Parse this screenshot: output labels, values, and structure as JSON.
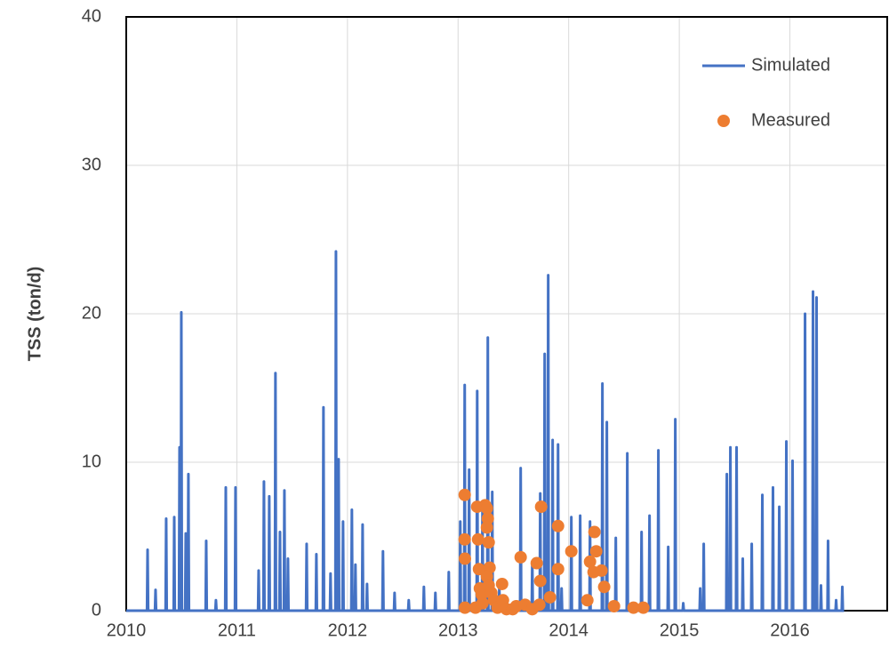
{
  "chart_data": {
    "type": "line",
    "y_label": "TSS (ton/d)",
    "xlim": [
      2010,
      2016.88
    ],
    "xticks": [
      2010,
      2011,
      2012,
      2013,
      2014,
      2015,
      2016
    ],
    "ylim": [
      0,
      40
    ],
    "yticks": [
      0,
      10,
      20,
      30,
      40
    ],
    "grid": true,
    "legend": "upper right",
    "series": [
      {
        "name": "Simulated",
        "type": "line",
        "color": "#4472c4",
        "x": [
          2010.0,
          2010.188,
          2010.193,
          2010.198,
          2010.26,
          2010.265,
          2010.27,
          2010.356,
          2010.361,
          2010.366,
          2010.429,
          2010.434,
          2010.439,
          2010.477,
          2010.482,
          2010.487,
          2010.493,
          2010.498,
          2010.503,
          2010.533,
          2010.538,
          2010.543,
          2010.557,
          2010.562,
          2010.567,
          2010.718,
          2010.723,
          2010.728,
          2010.806,
          2010.811,
          2010.816,
          2010.895,
          2010.9,
          2010.905,
          2010.983,
          2010.988,
          2010.993,
          2011.192,
          2011.197,
          2011.202,
          2011.24,
          2011.245,
          2011.25,
          2011.288,
          2011.293,
          2011.298,
          2011.344,
          2011.349,
          2011.354,
          2011.385,
          2011.39,
          2011.395,
          2011.425,
          2011.43,
          2011.435,
          2011.457,
          2011.462,
          2011.467,
          2011.626,
          2011.631,
          2011.636,
          2011.714,
          2011.719,
          2011.724,
          2011.778,
          2011.783,
          2011.788,
          2011.842,
          2011.847,
          2011.852,
          2011.891,
          2011.896,
          2011.901,
          2011.915,
          2011.92,
          2011.925,
          2011.955,
          2011.96,
          2011.965,
          2012.035,
          2012.04,
          2012.045,
          2012.067,
          2012.072,
          2012.077,
          2012.132,
          2012.137,
          2012.142,
          2012.172,
          2012.177,
          2012.182,
          2012.316,
          2012.321,
          2012.326,
          2012.421,
          2012.426,
          2012.431,
          2012.549,
          2012.554,
          2012.559,
          2012.686,
          2012.691,
          2012.696,
          2012.79,
          2012.795,
          2012.8,
          2012.911,
          2012.916,
          2012.921,
          2013.015,
          2013.02,
          2013.025,
          2013.055,
          2013.06,
          2013.065,
          2013.095,
          2013.1,
          2013.105,
          2013.168,
          2013.173,
          2013.178,
          2013.216,
          2013.221,
          2013.226,
          2013.264,
          2013.269,
          2013.274,
          2013.304,
          2013.309,
          2013.314,
          2013.368,
          2013.373,
          2013.378,
          2013.561,
          2013.566,
          2013.571,
          2013.666,
          2013.671,
          2013.676,
          2013.738,
          2013.743,
          2013.748,
          2013.778,
          2013.783,
          2013.788,
          2013.81,
          2013.815,
          2013.82,
          2013.85,
          2013.855,
          2013.86,
          2013.899,
          2013.904,
          2013.909,
          2013.931,
          2013.936,
          2013.941,
          2014.019,
          2014.024,
          2014.029,
          2014.099,
          2014.104,
          2014.109,
          2014.188,
          2014.193,
          2014.198,
          2014.3,
          2014.305,
          2014.31,
          2014.34,
          2014.345,
          2014.35,
          2014.421,
          2014.426,
          2014.431,
          2014.525,
          2014.53,
          2014.535,
          2014.654,
          2014.659,
          2014.664,
          2014.726,
          2014.731,
          2014.736,
          2014.806,
          2014.811,
          2014.816,
          2014.895,
          2014.9,
          2014.905,
          2014.959,
          2014.964,
          2014.969,
          2015.031,
          2015.036,
          2015.041,
          2015.184,
          2015.189,
          2015.194,
          2015.216,
          2015.221,
          2015.226,
          2015.425,
          2015.43,
          2015.435,
          2015.457,
          2015.462,
          2015.467,
          2015.513,
          2015.518,
          2015.523,
          2015.569,
          2015.574,
          2015.579,
          2015.65,
          2015.655,
          2015.66,
          2015.746,
          2015.751,
          2015.756,
          2015.842,
          2015.847,
          2015.852,
          2015.899,
          2015.904,
          2015.909,
          2015.963,
          2015.968,
          2015.973,
          2016.019,
          2016.024,
          2016.029,
          2016.132,
          2016.137,
          2016.142,
          2016.204,
          2016.209,
          2016.214,
          2016.236,
          2016.241,
          2016.246,
          2016.276,
          2016.281,
          2016.286,
          2016.34,
          2016.345,
          2016.35,
          2016.413,
          2016.418,
          2016.423,
          2016.469,
          2016.474,
          2016.479,
          2016.49
        ],
        "values": [
          0,
          0,
          4.1,
          0,
          0,
          1.4,
          0,
          0,
          6.2,
          0,
          0,
          6.3,
          0,
          0,
          11,
          0,
          0,
          20.1,
          0,
          0,
          5.2,
          0,
          0,
          9.2,
          0,
          0,
          4.7,
          0,
          0,
          0.7,
          0,
          0,
          8.3,
          0,
          0,
          8.3,
          0,
          0,
          2.7,
          0,
          0,
          8.7,
          0,
          0,
          7.7,
          0,
          0,
          16,
          0,
          0,
          5.3,
          0,
          0,
          8.1,
          0,
          0,
          3.5,
          0,
          0,
          4.5,
          0,
          0,
          3.8,
          0,
          0,
          13.7,
          0,
          0,
          2.5,
          0,
          0,
          24.2,
          0,
          0,
          10.2,
          0,
          0,
          6,
          0,
          0,
          6.8,
          0,
          0,
          3.1,
          0,
          0,
          5.8,
          0,
          0,
          1.8,
          0,
          0,
          4,
          0,
          0,
          1.2,
          0,
          0,
          0.7,
          0,
          0,
          1.6,
          0,
          0,
          1.2,
          0,
          0,
          2.6,
          0,
          0,
          6,
          0,
          0,
          15.2,
          0,
          0,
          9.5,
          0,
          0,
          14.8,
          0,
          0,
          7,
          0,
          0,
          18.4,
          0,
          0,
          8,
          0,
          0,
          1.5,
          0,
          0,
          9.6,
          0,
          0,
          3.3,
          0,
          0,
          7.9,
          0,
          0,
          17.3,
          0,
          0,
          22.6,
          0,
          0,
          11.5,
          0,
          0,
          11.2,
          0,
          0,
          1.5,
          0,
          0,
          6.3,
          0,
          0,
          6.4,
          0,
          0,
          6,
          0,
          0,
          15.3,
          0,
          0,
          12.7,
          0,
          0,
          4.9,
          0,
          0,
          10.6,
          0,
          0,
          5.3,
          0,
          0,
          6.4,
          0,
          0,
          10.8,
          0,
          0,
          4.3,
          0,
          0,
          12.9,
          0,
          0,
          0.5,
          0,
          0,
          1.5,
          0,
          0,
          4.5,
          0,
          0,
          9.2,
          0,
          0,
          11,
          0,
          0,
          11,
          0,
          0,
          3.5,
          0,
          0,
          4.5,
          0,
          0,
          7.8,
          0,
          0,
          8.3,
          0,
          0,
          7,
          0,
          0,
          11.4,
          0,
          0,
          10.1,
          0,
          0,
          20,
          0,
          0,
          21.5,
          0,
          0,
          21.1,
          0,
          0,
          1.7,
          0,
          0,
          4.7,
          0,
          0,
          0.7,
          0,
          0,
          1.6,
          0,
          0
        ]
      },
      {
        "name": "Measured",
        "type": "scatter",
        "color": "#ed7d31",
        "x": [
          2013.06,
          2013.06,
          2013.062,
          2013.062,
          2013.157,
          2013.173,
          2013.181,
          2013.189,
          2013.197,
          2013.213,
          2013.221,
          2013.245,
          2013.261,
          2013.269,
          2013.261,
          2013.277,
          2013.285,
          2013.261,
          2013.277,
          2013.301,
          2013.325,
          2013.357,
          2013.398,
          2013.406,
          2013.438,
          2013.494,
          2013.526,
          2013.566,
          2013.606,
          2013.671,
          2013.711,
          2013.735,
          2013.751,
          2013.743,
          2013.831,
          2013.904,
          2013.904,
          2014.024,
          2014.169,
          2014.193,
          2014.225,
          2014.233,
          2014.249,
          2014.297,
          2014.321,
          2014.41,
          2014.586,
          2014.675
        ],
        "values": [
          7.8,
          4.8,
          3.5,
          0.2,
          0.2,
          7,
          4.8,
          2.8,
          1.5,
          1.1,
          0.5,
          7.1,
          6.9,
          6.2,
          5.6,
          4.6,
          2.9,
          2.3,
          1.7,
          1.2,
          0.7,
          0.2,
          1.8,
          0.7,
          0.1,
          0.1,
          0.3,
          3.6,
          0.4,
          0.1,
          3.2,
          0.4,
          7,
          2,
          0.9,
          5.7,
          2.8,
          4,
          0.7,
          3.3,
          2.6,
          5.3,
          4,
          2.7,
          1.6,
          0.3,
          0.2,
          0.2
        ]
      }
    ]
  }
}
